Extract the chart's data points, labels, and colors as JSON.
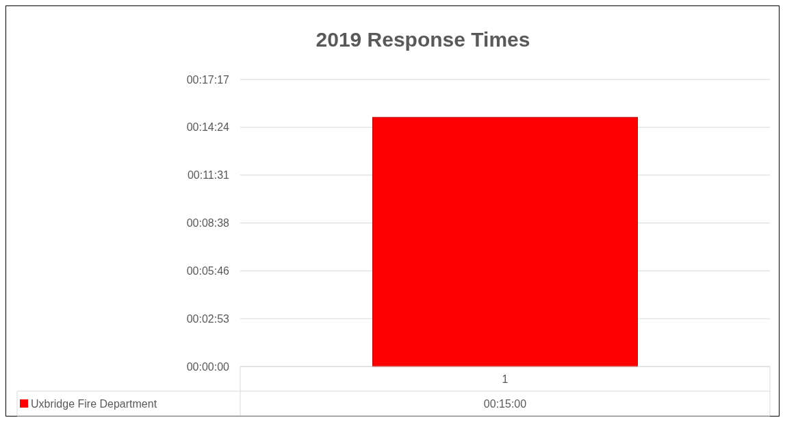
{
  "chart_data": {
    "type": "bar",
    "title": "2019 Response Times",
    "categories": [
      "1"
    ],
    "series": [
      {
        "name": "Uxbridge Fire Department",
        "color": "#ff0000",
        "values": [
          15
        ],
        "value_labels": [
          "00:15:00"
        ]
      }
    ],
    "ylim": [
      0,
      17.28
    ],
    "yticks": [
      {
        "value": 0,
        "label": "00:00:00"
      },
      {
        "value": 2.88,
        "label": "00:02:53"
      },
      {
        "value": 5.76,
        "label": "00:05:46"
      },
      {
        "value": 8.64,
        "label": "00:08:38"
      },
      {
        "value": 11.52,
        "label": "00:11:31"
      },
      {
        "value": 14.4,
        "label": "00:14:24"
      },
      {
        "value": 17.28,
        "label": "00:17:17"
      }
    ],
    "grid": "y",
    "legend": "bottom"
  }
}
